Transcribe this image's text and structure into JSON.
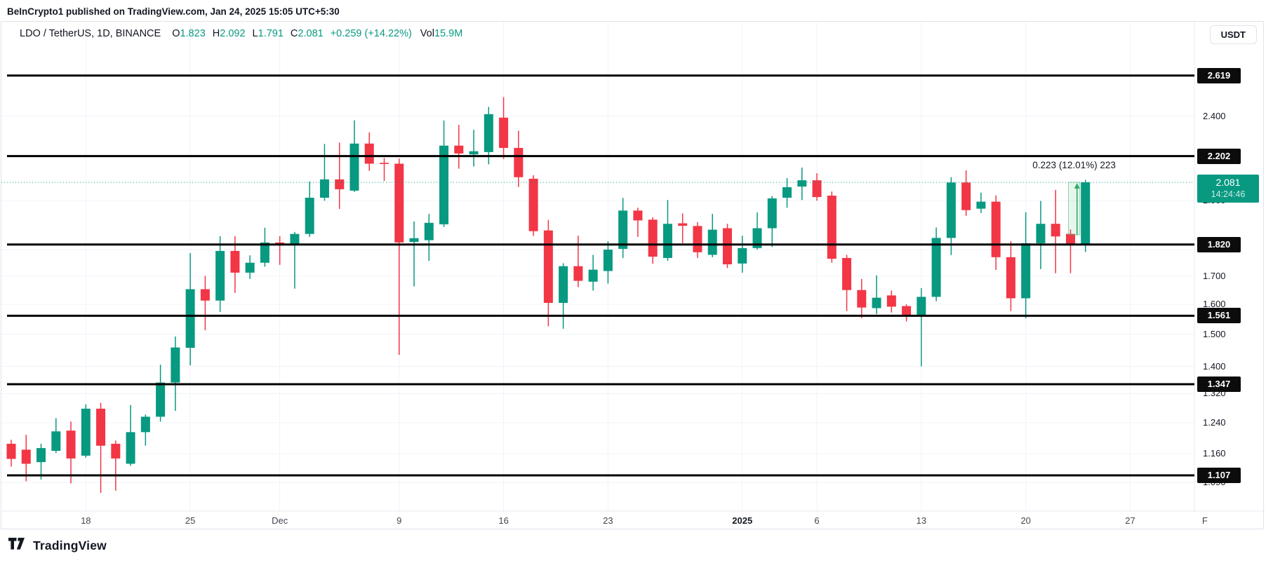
{
  "header": {
    "title": "BeInCrypto1 published on TradingView.com, Jan 24, 2025 15:05 UTC+5:30"
  },
  "legend": {
    "symbol_text": "LDO / TetherUS, 1D, BINANCE",
    "o_label": "O",
    "o": "1.823",
    "h_label": "H",
    "h": "2.092",
    "l_label": "L",
    "l": "1.791",
    "c_label": "C",
    "c": "2.081",
    "change": "+0.259 (+14.22%)",
    "vol_label": "Vol",
    "vol": "15.9M"
  },
  "price_axis": {
    "currency": "USDT",
    "level_badges": [
      "2.619",
      "2.202",
      "1.820",
      "1.561",
      "1.347",
      "1.107"
    ],
    "tick_labels": [
      "2.400",
      "2.000",
      "1.800",
      "1.700",
      "1.600",
      "1.500",
      "1.400",
      "1.320",
      "1.240",
      "1.160",
      "1.090"
    ],
    "current_badge": {
      "price": "2.081",
      "countdown": "14:24:46"
    }
  },
  "time_axis": {
    "ticks": [
      {
        "label": "18",
        "offset": 5,
        "bold": false
      },
      {
        "label": "25",
        "offset": 12,
        "bold": false
      },
      {
        "label": "Dec",
        "offset": 18,
        "bold": false
      },
      {
        "label": "9",
        "offset": 26,
        "bold": false
      },
      {
        "label": "16",
        "offset": 33,
        "bold": false
      },
      {
        "label": "23",
        "offset": 40,
        "bold": false
      },
      {
        "label": "2025",
        "offset": 49,
        "bold": true
      },
      {
        "label": "6",
        "offset": 54,
        "bold": false
      },
      {
        "label": "13",
        "offset": 61,
        "bold": false
      },
      {
        "label": "20",
        "offset": 68,
        "bold": false
      },
      {
        "label": "27",
        "offset": 75,
        "bold": false
      },
      {
        "label": "F",
        "offset": 80,
        "bold": false
      }
    ]
  },
  "chart_data": {
    "type": "candlestick",
    "symbol": "LDO / TetherUS",
    "interval": "1D",
    "exchange": "BINANCE",
    "scale": "log",
    "up_color": "#089981",
    "down_color": "#F23645",
    "level_line_color": "#000000",
    "levels": [
      2.619,
      2.202,
      1.82,
      1.561,
      1.347,
      1.107
    ],
    "grid_prices": [
      2.4,
      2.0,
      1.8,
      1.7,
      1.6,
      1.5,
      1.4,
      1.32,
      1.24,
      1.16,
      1.09
    ],
    "current_price": 2.081,
    "countdown": "14:24:46",
    "measure": {
      "from_price": 1.858,
      "to_price": 2.081,
      "start_index": 71,
      "end_index": 72,
      "label": "0.223 (12.01%) 223"
    },
    "columns": [
      "date",
      "open",
      "high",
      "low",
      "close"
    ],
    "candles": [
      [
        "2024-11-13",
        1.185,
        1.195,
        1.128,
        1.147
      ],
      [
        "2024-11-14",
        1.17,
        1.208,
        1.093,
        1.135
      ],
      [
        "2024-11-15",
        1.139,
        1.185,
        1.097,
        1.174
      ],
      [
        "2024-11-16",
        1.167,
        1.252,
        1.162,
        1.217
      ],
      [
        "2024-11-17",
        1.219,
        1.243,
        1.088,
        1.148
      ],
      [
        "2024-11-18",
        1.155,
        1.29,
        1.15,
        1.278
      ],
      [
        "2024-11-19",
        1.278,
        1.294,
        1.066,
        1.18
      ],
      [
        "2024-11-20",
        1.185,
        1.193,
        1.071,
        1.148
      ],
      [
        "2024-11-21",
        1.135,
        1.288,
        1.13,
        1.215
      ],
      [
        "2024-11-22",
        1.215,
        1.262,
        1.18,
        1.256
      ],
      [
        "2024-11-23",
        1.256,
        1.405,
        1.243,
        1.352
      ],
      [
        "2024-11-24",
        1.352,
        1.493,
        1.272,
        1.458
      ],
      [
        "2024-11-25",
        1.457,
        1.787,
        1.403,
        1.653
      ],
      [
        "2024-11-26",
        1.653,
        1.701,
        1.513,
        1.613
      ],
      [
        "2024-11-27",
        1.613,
        1.853,
        1.574,
        1.795
      ],
      [
        "2024-11-28",
        1.795,
        1.853,
        1.64,
        1.713
      ],
      [
        "2024-11-29",
        1.713,
        1.778,
        1.69,
        1.75
      ],
      [
        "2024-11-30",
        1.75,
        1.887,
        1.735,
        1.828
      ],
      [
        "2024-12-01",
        1.828,
        1.853,
        1.742,
        1.82
      ],
      [
        "2024-12-02",
        1.82,
        1.87,
        1.655,
        1.862
      ],
      [
        "2024-12-03",
        1.862,
        2.084,
        1.85,
        2.013
      ],
      [
        "2024-12-04",
        2.013,
        2.26,
        2.0,
        2.094
      ],
      [
        "2024-12-05",
        2.094,
        2.267,
        1.965,
        2.05
      ],
      [
        "2024-12-06",
        2.044,
        2.378,
        2.038,
        2.262
      ],
      [
        "2024-12-07",
        2.262,
        2.317,
        2.133,
        2.166
      ],
      [
        "2024-12-08",
        2.17,
        2.193,
        2.087,
        2.165
      ],
      [
        "2024-12-09",
        2.166,
        2.19,
        1.435,
        1.828
      ],
      [
        "2024-12-10",
        1.83,
        1.913,
        1.663,
        1.845
      ],
      [
        "2024-12-11",
        1.837,
        1.944,
        1.757,
        1.907
      ],
      [
        "2024-12-12",
        1.901,
        2.377,
        1.89,
        2.252
      ],
      [
        "2024-12-13",
        2.252,
        2.355,
        2.143,
        2.214
      ],
      [
        "2024-12-14",
        2.21,
        2.33,
        2.153,
        2.225
      ],
      [
        "2024-12-15",
        2.221,
        2.448,
        2.163,
        2.41
      ],
      [
        "2024-12-16",
        2.392,
        2.5,
        2.188,
        2.241
      ],
      [
        "2024-12-17",
        2.241,
        2.325,
        2.06,
        2.104
      ],
      [
        "2024-12-18",
        2.097,
        2.113,
        1.854,
        1.873
      ],
      [
        "2024-12-19",
        1.876,
        1.919,
        1.526,
        1.605
      ],
      [
        "2024-12-20",
        1.605,
        1.748,
        1.518,
        1.737
      ],
      [
        "2024-12-21",
        1.737,
        1.855,
        1.66,
        1.683
      ],
      [
        "2024-12-22",
        1.68,
        1.78,
        1.648,
        1.724
      ],
      [
        "2024-12-23",
        1.719,
        1.833,
        1.673,
        1.8
      ],
      [
        "2024-12-24",
        1.803,
        2.012,
        1.768,
        1.958
      ],
      [
        "2024-12-25",
        1.958,
        1.97,
        1.85,
        1.917
      ],
      [
        "2024-12-26",
        1.92,
        1.93,
        1.746,
        1.773
      ],
      [
        "2024-12-27",
        1.768,
        2.003,
        1.757,
        1.903
      ],
      [
        "2024-12-28",
        1.905,
        1.946,
        1.825,
        1.895
      ],
      [
        "2024-12-29",
        1.894,
        1.91,
        1.768,
        1.79
      ],
      [
        "2024-12-30",
        1.78,
        1.944,
        1.771,
        1.879
      ],
      [
        "2024-12-31",
        1.885,
        1.903,
        1.73,
        1.744
      ],
      [
        "2025-01-01",
        1.747,
        1.855,
        1.713,
        1.806
      ],
      [
        "2025-01-02",
        1.806,
        1.95,
        1.8,
        1.885
      ],
      [
        "2025-01-03",
        1.885,
        2.02,
        1.81,
        2.01
      ],
      [
        "2025-01-04",
        2.013,
        2.1,
        1.97,
        2.059
      ],
      [
        "2025-01-05",
        2.062,
        2.148,
        2.003,
        2.09
      ],
      [
        "2025-01-06",
        2.09,
        2.122,
        2.0,
        2.016
      ],
      [
        "2025-01-07",
        2.022,
        2.04,
        1.75,
        1.765
      ],
      [
        "2025-01-08",
        1.768,
        1.78,
        1.577,
        1.65
      ],
      [
        "2025-01-09",
        1.65,
        1.69,
        1.553,
        1.589
      ],
      [
        "2025-01-10",
        1.587,
        1.703,
        1.567,
        1.623
      ],
      [
        "2025-01-11",
        1.631,
        1.648,
        1.572,
        1.592
      ],
      [
        "2025-01-12",
        1.594,
        1.6,
        1.542,
        1.559
      ],
      [
        "2025-01-13",
        1.563,
        1.657,
        1.4,
        1.626
      ],
      [
        "2025-01-14",
        1.626,
        1.888,
        1.611,
        1.846
      ],
      [
        "2025-01-15",
        1.846,
        2.104,
        1.779,
        2.08
      ],
      [
        "2025-01-16",
        2.08,
        2.135,
        1.936,
        1.96
      ],
      [
        "2025-01-17",
        1.966,
        2.035,
        1.948,
        1.996
      ],
      [
        "2025-01-18",
        1.996,
        2.023,
        1.723,
        1.771
      ],
      [
        "2025-01-19",
        1.771,
        1.833,
        1.577,
        1.621
      ],
      [
        "2025-01-20",
        1.621,
        1.951,
        1.553,
        1.825
      ],
      [
        "2025-01-21",
        1.825,
        1.999,
        1.726,
        1.903
      ],
      [
        "2025-01-22",
        1.903,
        2.047,
        1.711,
        1.852
      ],
      [
        "2025-01-23",
        1.862,
        1.88,
        1.711,
        1.823
      ],
      [
        "2025-01-24",
        1.823,
        2.092,
        1.791,
        2.081
      ]
    ]
  },
  "footer": {
    "brand": "TradingView"
  }
}
